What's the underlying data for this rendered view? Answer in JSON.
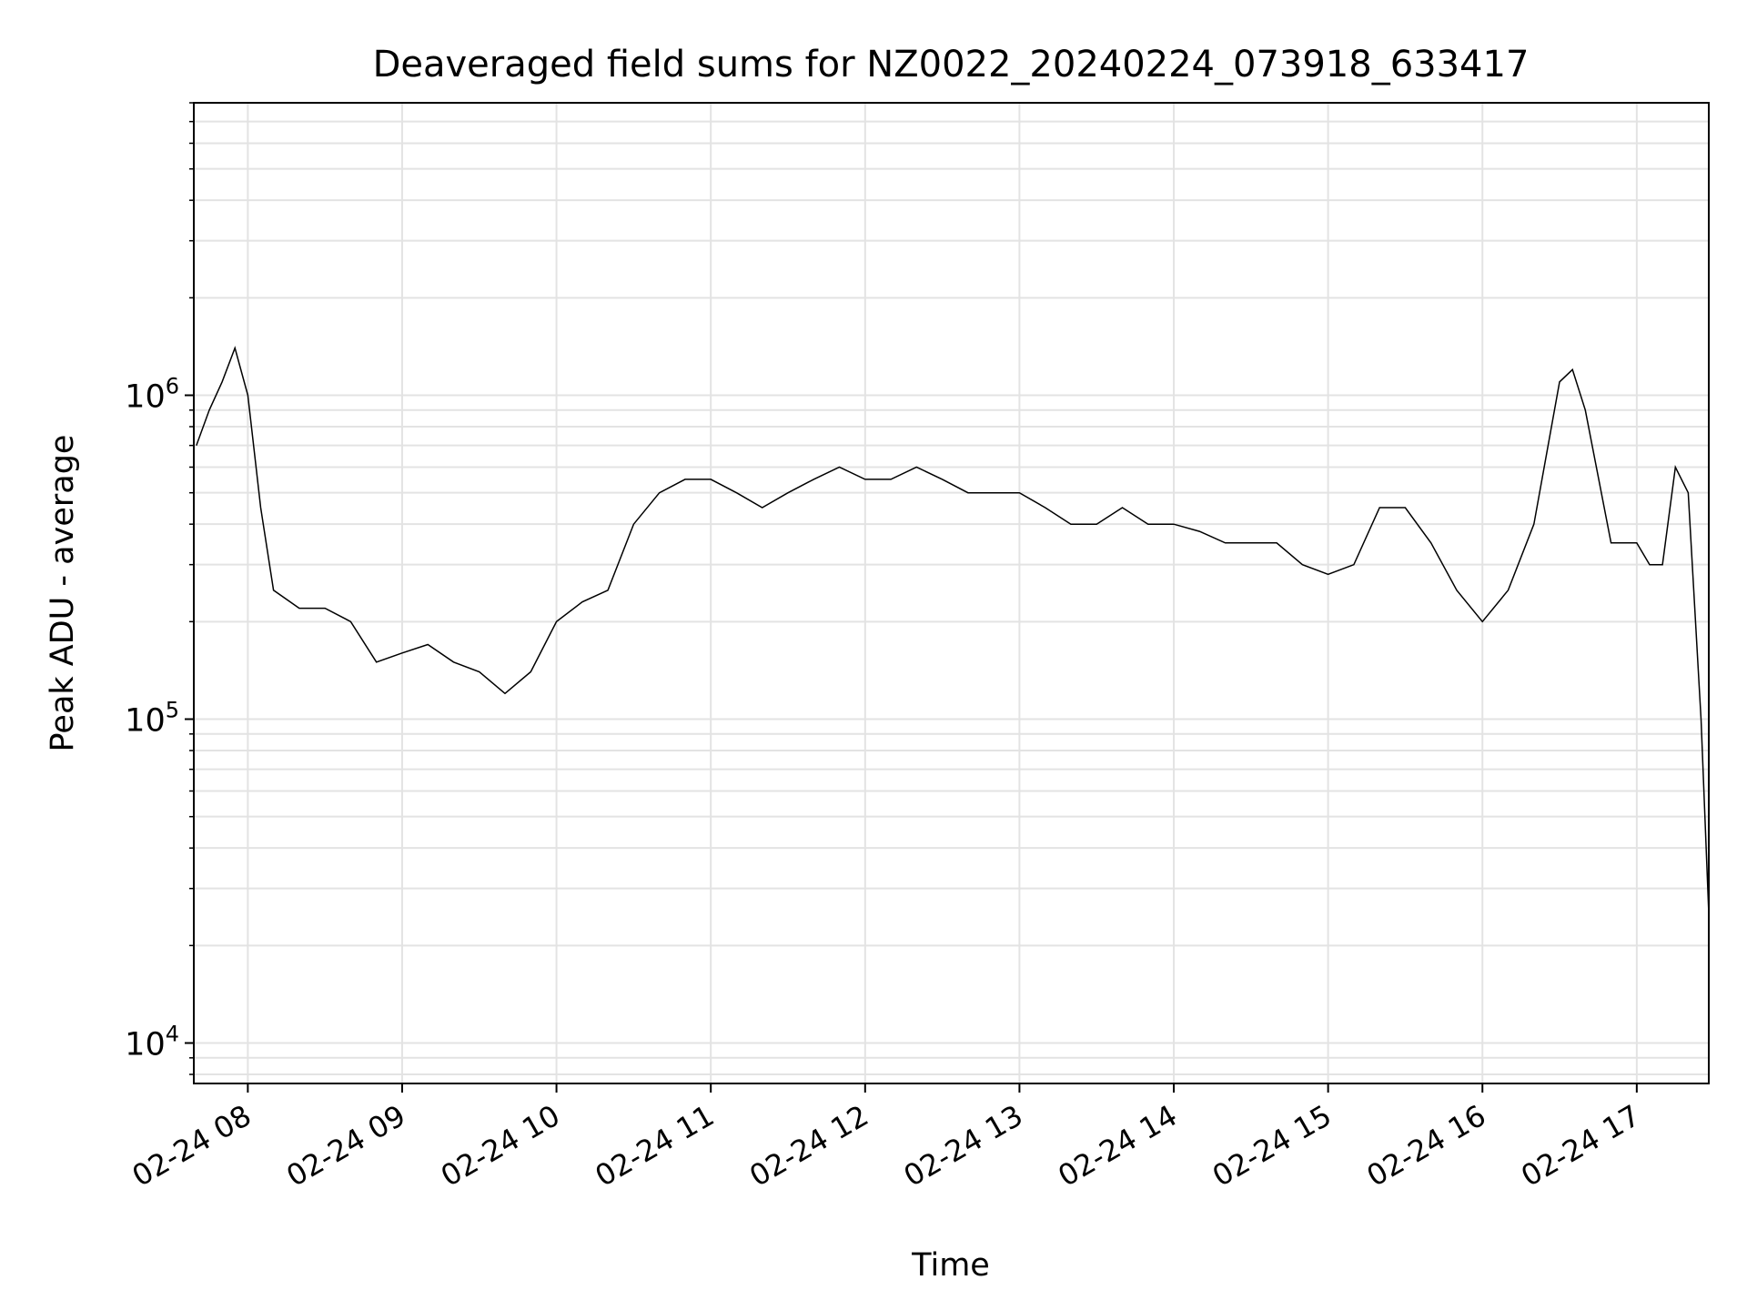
{
  "chart_data": {
    "type": "line",
    "title": "Deaveraged field sums for NZ0022_20240224_073918_633417",
    "xlabel": "Time",
    "ylabel": "Peak ADU - average",
    "yscale": "log",
    "grid": true,
    "legend": "none",
    "ylim": [
      7500,
      8000000
    ],
    "xlim": [
      "2024-02-24 07:39",
      "2024-02-24 17:28"
    ],
    "x_ticks": [
      {
        "value": "2024-02-24 08:00",
        "label": "02-24 08"
      },
      {
        "value": "2024-02-24 09:00",
        "label": "02-24 09"
      },
      {
        "value": "2024-02-24 10:00",
        "label": "02-24 10"
      },
      {
        "value": "2024-02-24 11:00",
        "label": "02-24 11"
      },
      {
        "value": "2024-02-24 12:00",
        "label": "02-24 12"
      },
      {
        "value": "2024-02-24 13:00",
        "label": "02-24 13"
      },
      {
        "value": "2024-02-24 14:00",
        "label": "02-24 14"
      },
      {
        "value": "2024-02-24 15:00",
        "label": "02-24 15"
      },
      {
        "value": "2024-02-24 16:00",
        "label": "02-24 16"
      },
      {
        "value": "2024-02-24 17:00",
        "label": "02-24 17"
      }
    ],
    "y_ticks": [
      {
        "value": 10000,
        "base": "10",
        "exp": "4"
      },
      {
        "value": 100000,
        "base": "10",
        "exp": "5"
      },
      {
        "value": 1000000,
        "base": "10",
        "exp": "6"
      }
    ],
    "series": [
      {
        "color": "#000000",
        "x": [
          "2024-02-24 07:40",
          "2024-02-24 07:45",
          "2024-02-24 07:50",
          "2024-02-24 07:55",
          "2024-02-24 08:00",
          "2024-02-24 08:05",
          "2024-02-24 08:10",
          "2024-02-24 08:20",
          "2024-02-24 08:30",
          "2024-02-24 08:40",
          "2024-02-24 08:50",
          "2024-02-24 09:00",
          "2024-02-24 09:10",
          "2024-02-24 09:20",
          "2024-02-24 09:30",
          "2024-02-24 09:40",
          "2024-02-24 09:50",
          "2024-02-24 10:00",
          "2024-02-24 10:10",
          "2024-02-24 10:20",
          "2024-02-24 10:30",
          "2024-02-24 10:40",
          "2024-02-24 10:50",
          "2024-02-24 11:00",
          "2024-02-24 11:10",
          "2024-02-24 11:20",
          "2024-02-24 11:30",
          "2024-02-24 11:40",
          "2024-02-24 11:50",
          "2024-02-24 12:00",
          "2024-02-24 12:10",
          "2024-02-24 12:20",
          "2024-02-24 12:30",
          "2024-02-24 12:40",
          "2024-02-24 12:50",
          "2024-02-24 13:00",
          "2024-02-24 13:10",
          "2024-02-24 13:20",
          "2024-02-24 13:30",
          "2024-02-24 13:40",
          "2024-02-24 13:50",
          "2024-02-24 14:00",
          "2024-02-24 14:10",
          "2024-02-24 14:20",
          "2024-02-24 14:30",
          "2024-02-24 14:40",
          "2024-02-24 14:50",
          "2024-02-24 15:00",
          "2024-02-24 15:10",
          "2024-02-24 15:20",
          "2024-02-24 15:30",
          "2024-02-24 15:40",
          "2024-02-24 15:50",
          "2024-02-24 16:00",
          "2024-02-24 16:10",
          "2024-02-24 16:20",
          "2024-02-24 16:30",
          "2024-02-24 16:35",
          "2024-02-24 16:40",
          "2024-02-24 16:50",
          "2024-02-24 17:00",
          "2024-02-24 17:05",
          "2024-02-24 17:10",
          "2024-02-24 17:15",
          "2024-02-24 17:20",
          "2024-02-24 17:25",
          "2024-02-24 17:28"
        ],
        "y": [
          700000,
          900000,
          1100000,
          1400000,
          1000000,
          450000,
          250000,
          220000,
          220000,
          200000,
          150000,
          160000,
          170000,
          150000,
          140000,
          120000,
          140000,
          200000,
          230000,
          250000,
          400000,
          500000,
          550000,
          550000,
          500000,
          450000,
          500000,
          550000,
          600000,
          550000,
          550000,
          600000,
          550000,
          500000,
          500000,
          500000,
          450000,
          400000,
          400000,
          450000,
          400000,
          400000,
          380000,
          350000,
          350000,
          350000,
          300000,
          280000,
          300000,
          450000,
          450000,
          350000,
          250000,
          200000,
          250000,
          400000,
          1100000,
          1200000,
          900000,
          350000,
          350000,
          300000,
          300000,
          600000,
          500000,
          100000,
          25000
        ]
      }
    ]
  }
}
